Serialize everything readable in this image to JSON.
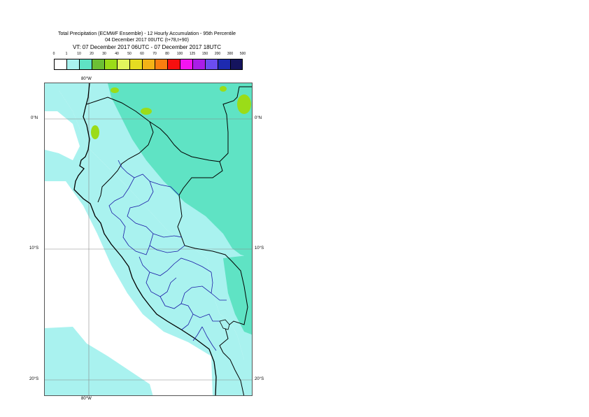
{
  "map": {
    "title_line1": "Total Precipitation (ECMWF Ensemble) - 12 Hourly Accumulation - 95th Percentile",
    "title_line2": "04 December 2017 00UTC (t+78,t+90)",
    "title_line3": "VT: 07 December 2017 06UTC - 07 December 2017 18UTC",
    "legend": {
      "tick_labels": [
        "0",
        "1",
        "10",
        "20",
        "30",
        "40",
        "50",
        "60",
        "70",
        "80",
        "100",
        "125",
        "150",
        "200",
        "300",
        "500"
      ],
      "colors": [
        "#ffffff",
        "#a9f2ef",
        "#5fe3c4",
        "#6cc034",
        "#9bdc18",
        "#e2f55d",
        "#e6dc21",
        "#f4b316",
        "#f97e10",
        "#f70f0f",
        "#f414f0",
        "#aa1de8",
        "#6c4df0",
        "#1d2ab0",
        "#15145e"
      ]
    },
    "axis_labels": {
      "lon_top": "80°W",
      "lon_bottom": "80°W",
      "lat_left": [
        "0°N",
        "10°S",
        "20°S"
      ],
      "lat_right": [
        "0°N",
        "10°S",
        "20°S"
      ]
    },
    "field_colors": {
      "ocean_light": "#a9f2ef",
      "land_medium": "#5fe3c4",
      "convective_green": "#9bdc18",
      "coast_line": "#000000",
      "admin_line": "#1a1aa6",
      "grid_line": "#888888"
    }
  }
}
